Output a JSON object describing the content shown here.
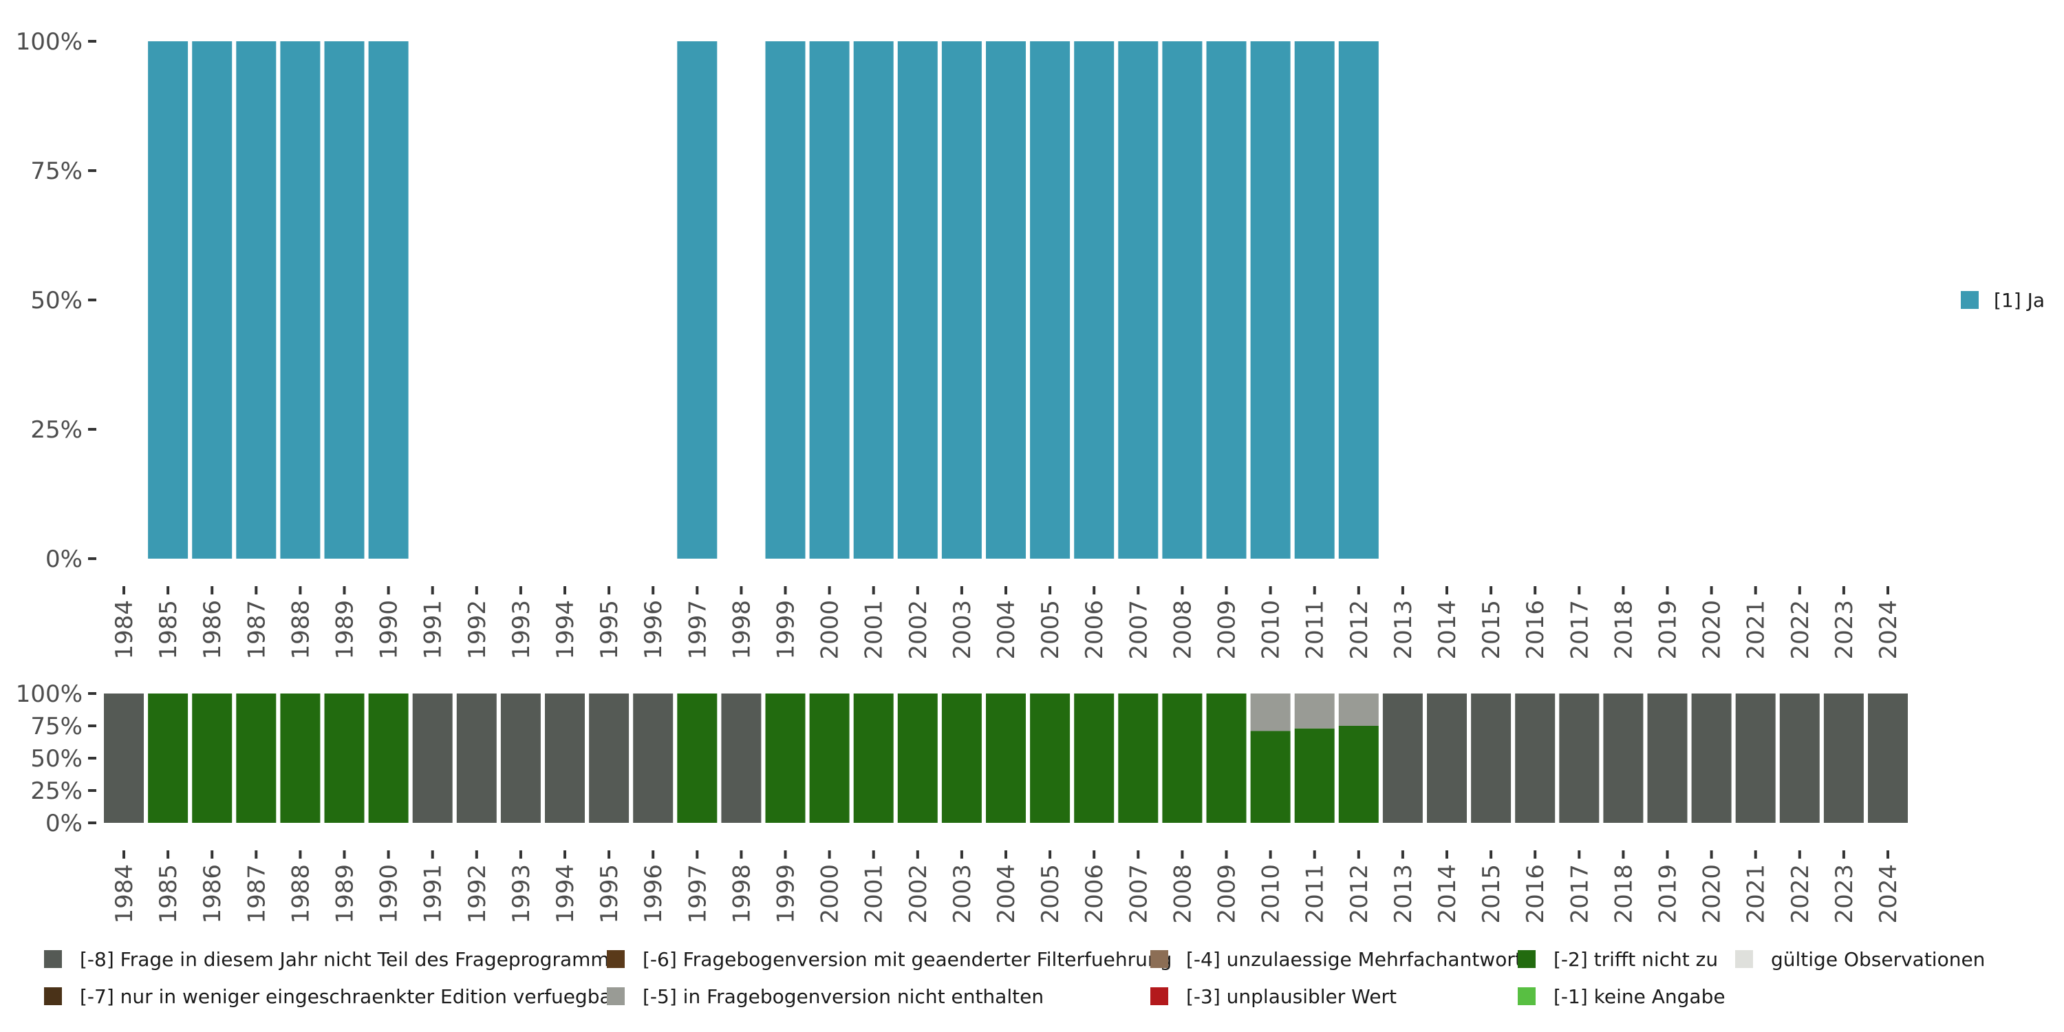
{
  "chart_data": [
    {
      "type": "bar",
      "stacked": true,
      "title": "",
      "xlabel": "",
      "ylabel": "",
      "ylim": [
        0,
        1
      ],
      "y_ticks": [
        "0%",
        "25%",
        "50%",
        "75%",
        "100%"
      ],
      "categories": [
        "1984",
        "1985",
        "1986",
        "1987",
        "1988",
        "1989",
        "1990",
        "1991",
        "1992",
        "1993",
        "1994",
        "1995",
        "1996",
        "1997",
        "1998",
        "1999",
        "2000",
        "2001",
        "2002",
        "2003",
        "2004",
        "2005",
        "2006",
        "2007",
        "2008",
        "2009",
        "2010",
        "2011",
        "2012",
        "2013",
        "2014",
        "2015",
        "2016",
        "2017",
        "2018",
        "2019",
        "2020",
        "2021",
        "2022",
        "2023",
        "2024"
      ],
      "series": [
        {
          "name": "[1] Ja",
          "color": "#3b9ab2",
          "values": [
            0,
            1,
            1,
            1,
            1,
            1,
            1,
            0,
            0,
            0,
            0,
            0,
            0,
            1,
            0,
            1,
            1,
            1,
            1,
            1,
            1,
            1,
            1,
            1,
            1,
            1,
            1,
            1,
            1,
            0,
            0,
            0,
            0,
            0,
            0,
            0,
            0,
            0,
            0,
            0,
            0
          ]
        }
      ],
      "legend": [
        {
          "label": "[1] Ja",
          "color": "#3b9ab2"
        }
      ],
      "legend_position": "right"
    },
    {
      "type": "bar",
      "stacked": true,
      "title": "",
      "xlabel": "",
      "ylabel": "",
      "ylim": [
        0,
        1
      ],
      "y_ticks": [
        "0%",
        "25%",
        "50%",
        "75%",
        "100%"
      ],
      "categories": [
        "1984",
        "1985",
        "1986",
        "1987",
        "1988",
        "1989",
        "1990",
        "1991",
        "1992",
        "1993",
        "1994",
        "1995",
        "1996",
        "1997",
        "1998",
        "1999",
        "2000",
        "2001",
        "2002",
        "2003",
        "2004",
        "2005",
        "2006",
        "2007",
        "2008",
        "2009",
        "2010",
        "2011",
        "2012",
        "2013",
        "2014",
        "2015",
        "2016",
        "2017",
        "2018",
        "2019",
        "2020",
        "2021",
        "2022",
        "2023",
        "2024"
      ],
      "series": [
        {
          "name": "[-2] trifft nicht zu",
          "color": "#226b0f",
          "values": [
            0,
            1,
            1,
            1,
            1,
            1,
            1,
            0,
            0,
            0,
            0,
            0,
            0,
            1,
            0,
            1,
            1,
            1,
            1,
            1,
            1,
            1,
            1,
            1,
            1,
            1,
            0.71,
            0.73,
            0.75,
            0,
            0,
            0,
            0,
            0,
            0,
            0,
            0,
            0,
            0,
            0,
            0
          ]
        },
        {
          "name": "[-5] in Fragebogenversion nicht enthalten",
          "color": "#999b95",
          "values": [
            0,
            0,
            0,
            0,
            0,
            0,
            0,
            0,
            0,
            0,
            0,
            0,
            0,
            0,
            0,
            0,
            0,
            0,
            0,
            0,
            0,
            0,
            0,
            0,
            0,
            0,
            0.29,
            0.27,
            0.25,
            0,
            0,
            0,
            0,
            0,
            0,
            0,
            0,
            0,
            0,
            0,
            0
          ]
        },
        {
          "name": "[-8] Frage in diesem Jahr nicht Teil des Frageprogramms",
          "color": "#555a55",
          "values": [
            1,
            0,
            0,
            0,
            0,
            0,
            0,
            1,
            1,
            1,
            1,
            1,
            1,
            0,
            1,
            0,
            0,
            0,
            0,
            0,
            0,
            0,
            0,
            0,
            0,
            0,
            0,
            0,
            0,
            1,
            1,
            1,
            1,
            1,
            1,
            1,
            1,
            1,
            1,
            1,
            1
          ]
        }
      ],
      "legend": [
        {
          "label": "[-8] Frage in diesem Jahr nicht Teil des Frageprogramms",
          "color": "#555a55"
        },
        {
          "label": "[-7] nur in weniger eingeschraenkter Edition verfuegbar",
          "color": "#4a3218"
        },
        {
          "label": "[-6] Fragebogenversion mit geaenderter Filterfuehrung",
          "color": "#5a3a1a"
        },
        {
          "label": "[-5] in Fragebogenversion nicht enthalten",
          "color": "#999b95"
        },
        {
          "label": "[-4] unzulaessige Mehrfachantwort",
          "color": "#8c6e55"
        },
        {
          "label": "[-3] unplausibler Wert",
          "color": "#b3191c"
        },
        {
          "label": "[-2] trifft nicht zu",
          "color": "#226b0f"
        },
        {
          "label": "[-1] keine Angabe",
          "color": "#58bf42"
        },
        {
          "label": "gültige Observationen",
          "color": "#dfe0dc"
        }
      ],
      "legend_position": "bottom"
    }
  ]
}
